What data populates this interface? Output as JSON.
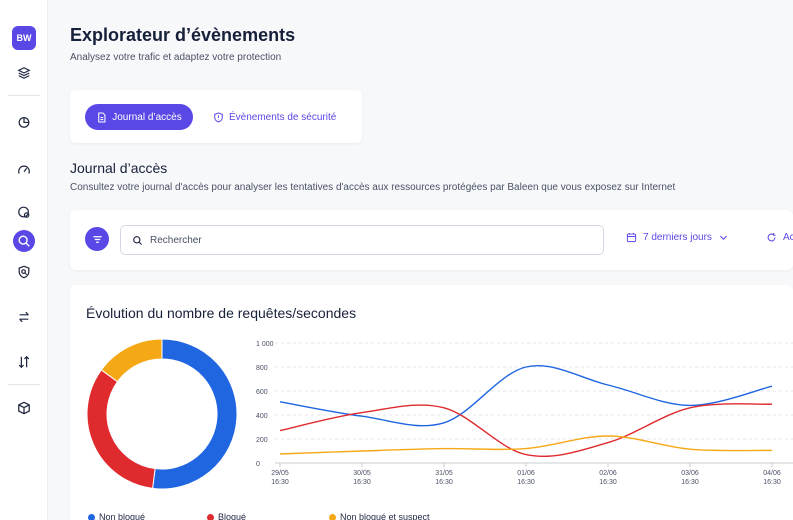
{
  "sidebar": {
    "avatar": "BW",
    "items": [
      {
        "icon": "layers-icon"
      },
      {
        "icon": "pie-chart-icon"
      },
      {
        "icon": "gauge-icon"
      },
      {
        "icon": "shield-globe-icon"
      },
      {
        "icon": "search-events-icon",
        "active": true
      },
      {
        "icon": "shield-search-icon"
      },
      {
        "icon": "transfer-arrows-icon"
      },
      {
        "icon": "sort-arrows-icon"
      },
      {
        "icon": "package-icon"
      }
    ]
  },
  "header": {
    "title": "Explorateur d’évènements",
    "subtitle": "Analysez votre trafic et adaptez votre protection"
  },
  "tabs": {
    "active_label": "Journal d’accès",
    "other_label": "Évènements de sécurité"
  },
  "section": {
    "title": "Journal d’accès",
    "subtitle": "Consultez votre journal d'accès pour analyser les tentatives d'accès aux ressources protégées par Baleen que vous exposez sur Internet"
  },
  "filters": {
    "search_placeholder": "Rechercher",
    "date_range": "7 derniers jours",
    "refresh_label": "Ac"
  },
  "colors": {
    "accent": "#5a48e6",
    "non_blocked": "#1f66e0",
    "blocked": "#df2a2e",
    "suspect": "#f5a816"
  },
  "chart": {
    "title": "Évolution du nombre de requêtes/secondes",
    "legend": [
      "Non bloqué",
      "Bloqué",
      "Non bloqué et suspect"
    ]
  },
  "chart_data": [
    {
      "type": "pie",
      "categories": [
        "Non bloqué",
        "Bloqué",
        "Non bloqué et suspect"
      ],
      "values": [
        52,
        33,
        15
      ],
      "colors": [
        "#1f66e0",
        "#df2a2e",
        "#f5a816"
      ]
    },
    {
      "type": "line",
      "x": [
        "29/05\n16:30",
        "30/05\n16:30",
        "31/05\n16:30",
        "01/06\n16:30",
        "02/06\n16:30",
        "03/06\n16:30",
        "04/06\n16:30"
      ],
      "y_ticks": [
        "0",
        "200",
        "400",
        "600",
        "800",
        "1 000"
      ],
      "ylim": [
        0,
        1000
      ],
      "series": [
        {
          "name": "Non bloqué",
          "color": "#1f66e0",
          "values": [
            510,
            390,
            335,
            800,
            650,
            480,
            640
          ]
        },
        {
          "name": "Bloqué",
          "color": "#df2a2e",
          "values": [
            270,
            420,
            460,
            70,
            170,
            460,
            490
          ]
        },
        {
          "name": "Non bloqué et suspect",
          "color": "#f5a816",
          "values": [
            75,
            100,
            120,
            120,
            225,
            115,
            105
          ]
        }
      ],
      "legend_position": "bottom"
    }
  ]
}
